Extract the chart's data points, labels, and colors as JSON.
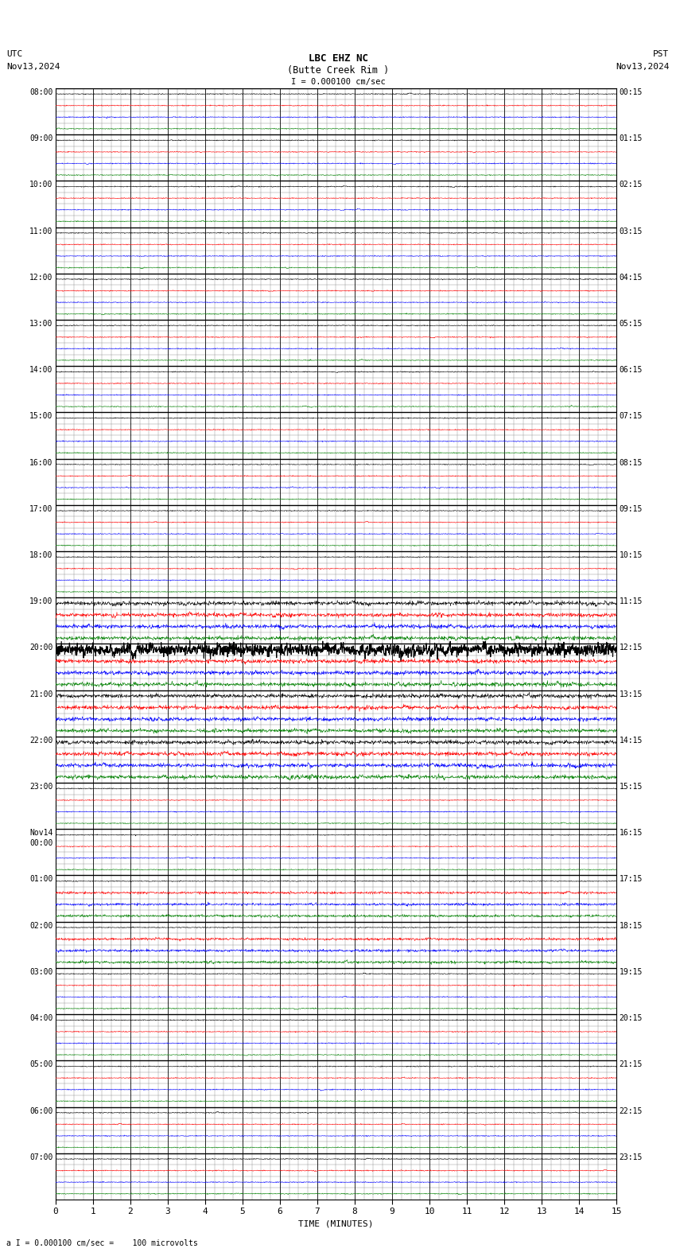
{
  "title_line1": "LBC EHZ NC",
  "title_line2": "(Butte Creek Rim )",
  "scale_label": "I = 0.000100 cm/sec",
  "top_left_label1": "UTC",
  "top_left_label2": "Nov13,2024",
  "top_right_label1": "PST",
  "top_right_label2": "Nov13,2024",
  "bottom_label": "a I = 0.000100 cm/sec =    100 microvolts",
  "xlabel": "TIME (MINUTES)",
  "x_min": 0,
  "x_max": 15,
  "x_ticks": [
    0,
    1,
    2,
    3,
    4,
    5,
    6,
    7,
    8,
    9,
    10,
    11,
    12,
    13,
    14,
    15
  ],
  "utc_times": [
    "08:00",
    "09:00",
    "10:00",
    "11:00",
    "12:00",
    "13:00",
    "14:00",
    "15:00",
    "16:00",
    "17:00",
    "18:00",
    "19:00",
    "20:00",
    "21:00",
    "22:00",
    "23:00",
    "Nov14\n00:00",
    "01:00",
    "02:00",
    "03:00",
    "04:00",
    "05:00",
    "06:00",
    "07:00"
  ],
  "pst_times": [
    "00:15",
    "01:15",
    "02:15",
    "03:15",
    "04:15",
    "05:15",
    "06:15",
    "07:15",
    "08:15",
    "09:15",
    "10:15",
    "11:15",
    "12:15",
    "13:15",
    "14:15",
    "15:15",
    "16:15",
    "17:15",
    "18:15",
    "19:15",
    "20:15",
    "21:15",
    "22:15",
    "23:15"
  ],
  "n_rows": 24,
  "n_subrows": 4,
  "background_color": "#ffffff",
  "grid_major_color": "#000000",
  "grid_minor_color": "#888888",
  "signal_color_black": "#000000",
  "signal_color_red": "#ff0000",
  "signal_color_blue": "#0000ff",
  "signal_color_green": "#008000"
}
